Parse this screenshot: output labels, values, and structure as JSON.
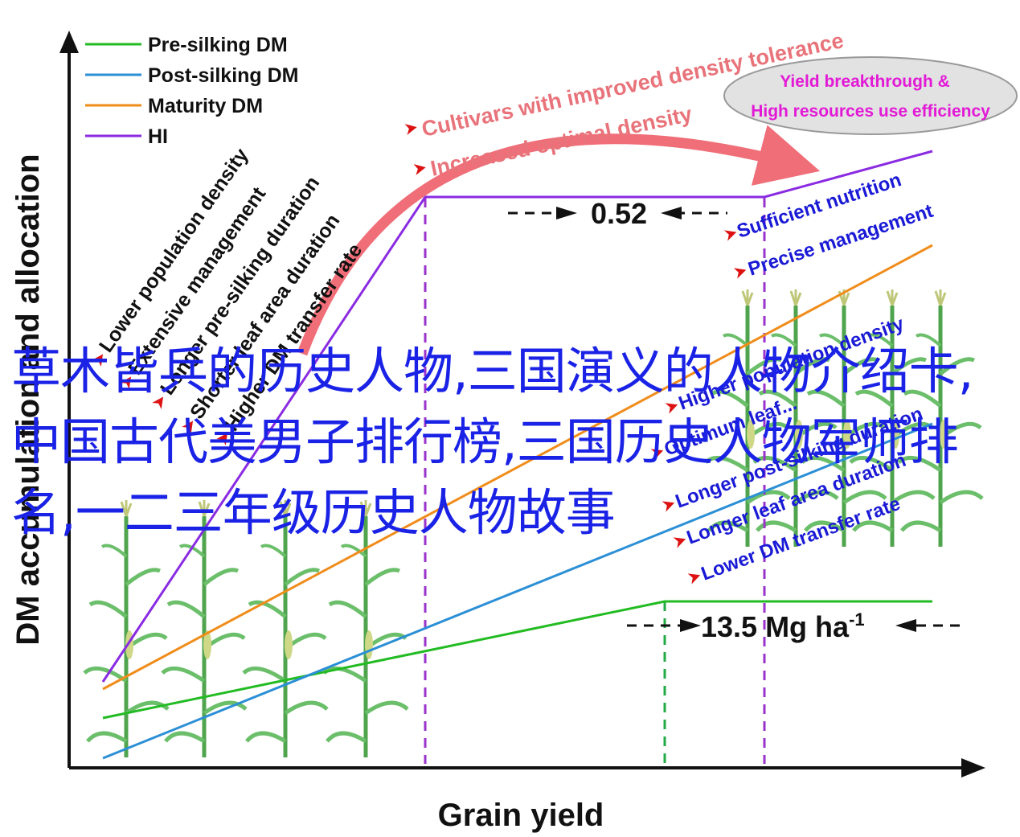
{
  "axes": {
    "y_label": "DM accumulation and allocation",
    "x_label": "Grain yield"
  },
  "legend": [
    {
      "label": "Pre-silking DM",
      "color": "#22bb22"
    },
    {
      "label": "Post-silking DM",
      "color": "#2b8fd6"
    },
    {
      "label": "Maturity DM",
      "color": "#f08c1a"
    },
    {
      "label": "HI",
      "color": "#8a2be2"
    }
  ],
  "annotations": {
    "left": [
      "Lower population density",
      "Extensive management",
      "Longer pre-silking duration",
      "Shorter leaf area duration",
      "Higher DM transfer rate"
    ],
    "right_top": [
      "Sufficient nutrition",
      "Precise management"
    ],
    "right_bottom": [
      "Higher population density",
      "Optimum leaf...",
      "Longer post-silking duration",
      "Longer leaf area duration",
      "Lower DM transfer rate"
    ],
    "top": [
      "Cultivars with improved density tolerance",
      "Increased optimal density"
    ],
    "ellipse": [
      "Yield breakthrough &",
      "High resources use efficiency"
    ],
    "hi_value": "0.52",
    "yield_value": "13.5 Mg ha",
    "yield_exponent": "-1"
  },
  "colors": {
    "pre_silking": "#22bb22",
    "post_silking": "#2b8fd6",
    "maturity": "#f08c1a",
    "hi": "#8a2be2",
    "arrow": "#f06e78",
    "overlay_text": "#1a22e6"
  },
  "overlay_text": "草木皆兵的历史人物,三国演义的人物介绍卡,中国古代美男子排行榜,三国历史人物军师排名,一二三年级历史人物故事"
}
